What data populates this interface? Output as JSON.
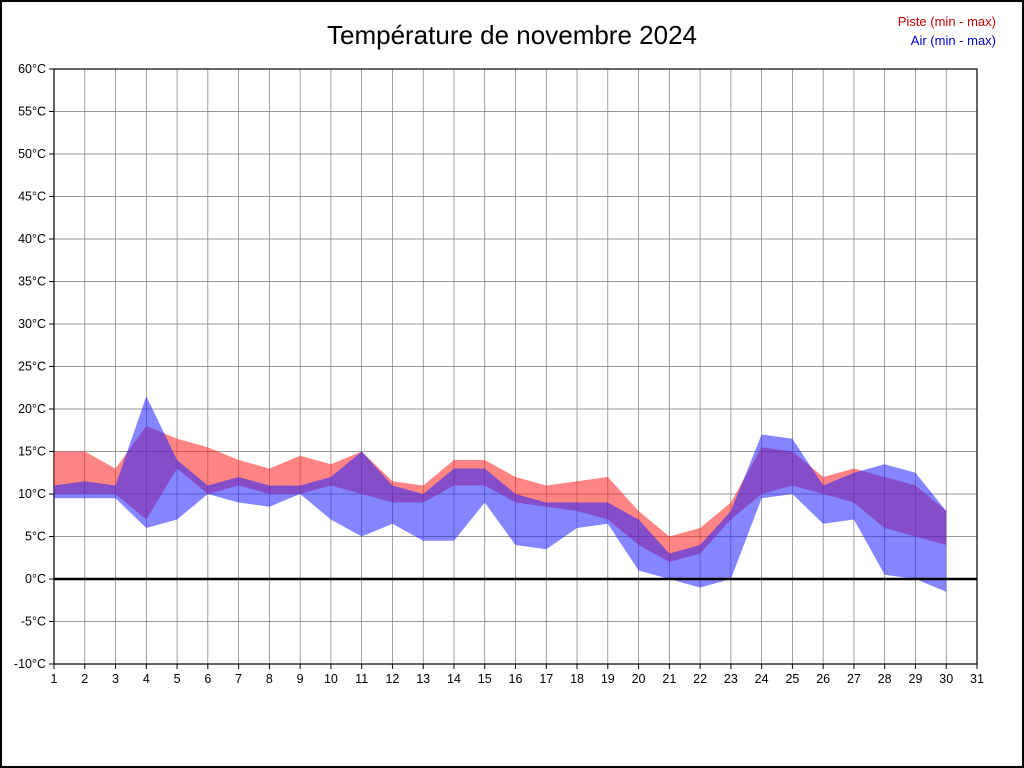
{
  "page": {
    "title": "Température de novembre 2024"
  },
  "legend": [
    {
      "label": "Piste (min - max)",
      "color": "#cc0000"
    },
    {
      "label": "Air (min - max)",
      "color": "#0000cc"
    }
  ],
  "chart_data": {
    "type": "area",
    "title": "Température de novembre 2024",
    "x": [
      1,
      2,
      3,
      4,
      5,
      6,
      7,
      8,
      9,
      10,
      11,
      12,
      13,
      14,
      15,
      16,
      17,
      18,
      19,
      20,
      21,
      22,
      23,
      24,
      25,
      26,
      27,
      28,
      29,
      30
    ],
    "x_axis": {
      "min": 1,
      "max": 31,
      "ticks": [
        1,
        2,
        3,
        4,
        5,
        6,
        7,
        8,
        9,
        10,
        11,
        12,
        13,
        14,
        15,
        16,
        17,
        18,
        19,
        20,
        21,
        22,
        23,
        24,
        25,
        26,
        27,
        28,
        29,
        30,
        31
      ]
    },
    "y_axis": {
      "min": -10,
      "max": 60,
      "step": 5,
      "tick_suffix": "°C"
    },
    "grid": true,
    "zero_line": true,
    "legend_position": "top-right",
    "series": [
      {
        "name": "Piste (min - max)",
        "color": "#ff2020",
        "opacity": 0.55,
        "max": [
          15,
          15,
          13,
          18,
          16.5,
          15.5,
          14,
          13,
          14.5,
          13.5,
          15,
          11.5,
          11,
          14,
          14,
          12,
          11,
          11.5,
          12,
          8,
          5,
          6,
          9,
          15.5,
          15,
          12,
          13,
          12,
          11,
          8
        ],
        "min": [
          10,
          10,
          10,
          7,
          13,
          10,
          11,
          10,
          10,
          11,
          10,
          9,
          9,
          11,
          11,
          9,
          8.5,
          8,
          7,
          4,
          2,
          3,
          7,
          10,
          11,
          10,
          9,
          6,
          5,
          4
        ]
      },
      {
        "name": "Air (min - max)",
        "color": "#2020ff",
        "opacity": 0.55,
        "max": [
          11,
          11.5,
          11,
          21.5,
          14,
          11,
          12,
          11,
          11,
          12,
          15,
          11,
          10,
          13,
          13,
          10,
          9,
          9,
          9,
          7,
          3,
          4,
          8,
          17,
          16.5,
          11,
          12.5,
          13.5,
          12.5,
          8
        ],
        "min": [
          9.5,
          9.5,
          9.5,
          6,
          7,
          10,
          9,
          8.5,
          10,
          7,
          5,
          6.5,
          4.5,
          4.5,
          9,
          4,
          3.5,
          6,
          6.5,
          1,
          0,
          -1,
          0,
          9.5,
          10,
          6.5,
          7,
          0.5,
          0,
          -1.5
        ]
      }
    ]
  }
}
